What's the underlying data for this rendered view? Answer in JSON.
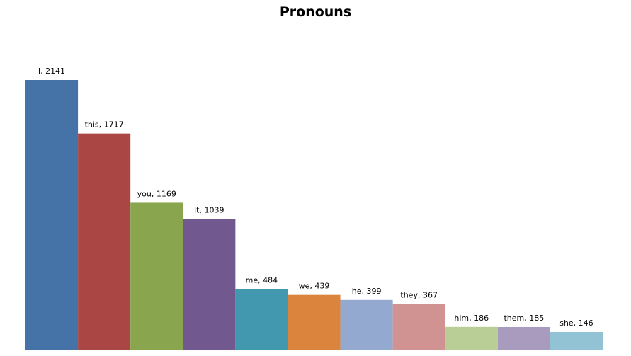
{
  "chart_data": {
    "type": "bar",
    "title": "Pronouns",
    "xlabel": "",
    "ylabel": "",
    "ylim": [
      0,
      2141
    ],
    "grid": false,
    "legend": "none",
    "categories": [
      "i",
      "this",
      "you",
      "it",
      "me",
      "we",
      "he",
      "they",
      "him",
      "them",
      "she"
    ],
    "values": [
      2141,
      1717,
      1169,
      1039,
      484,
      439,
      399,
      367,
      186,
      185,
      146
    ],
    "data_labels": [
      "i, 2141",
      "this, 1717",
      "you, 1169",
      "it, 1039",
      "me, 484",
      "we, 439",
      "he, 399",
      "they, 367",
      "him, 186",
      "them, 185",
      "she, 146"
    ],
    "colors": [
      "#4572A7",
      "#AA4643",
      "#89A54E",
      "#71588F",
      "#4198AF",
      "#DB843D",
      "#93A9CF",
      "#D19392",
      "#B9CD96",
      "#A99BBD",
      "#91C3D5"
    ]
  }
}
